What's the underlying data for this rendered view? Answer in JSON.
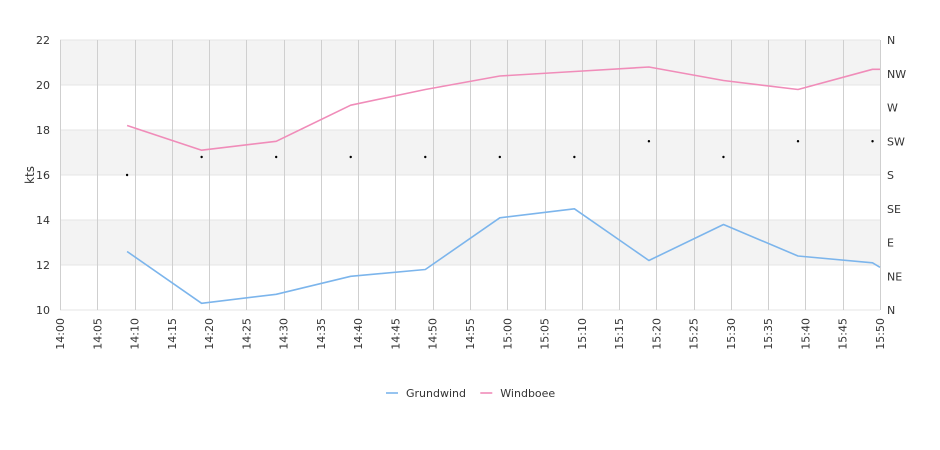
{
  "chart_data": {
    "type": "line",
    "ylabel": "kts",
    "ylim": [
      10,
      22
    ],
    "y_ticks": [
      "10",
      "12",
      "14",
      "16",
      "18",
      "20",
      "22"
    ],
    "x_ticks": [
      "14:00",
      "14:05",
      "14:10",
      "14:15",
      "14:20",
      "14:25",
      "14:30",
      "14:35",
      "14:40",
      "14:45",
      "14:50",
      "14:55",
      "15:00",
      "15:05",
      "15:10",
      "15:15",
      "15:20",
      "15:25",
      "15:30",
      "15:35",
      "15:40",
      "15:45",
      "15:50"
    ],
    "x_range": [
      "14:00",
      "15:50"
    ],
    "right_axis": {
      "label": "",
      "ticks": [
        "N",
        "NE",
        "E",
        "SE",
        "S",
        "SW",
        "W",
        "NW",
        "N"
      ]
    },
    "grid": true,
    "band_colors": [
      "#f3f3f3",
      "#ffffff"
    ],
    "legend_position": "bottom-center",
    "series": [
      {
        "name": "Grundwind",
        "color": "#7cb5ec",
        "points": [
          [
            "14:09",
            12.6
          ],
          [
            "14:19",
            10.3
          ],
          [
            "14:29",
            10.7
          ],
          [
            "14:39",
            11.5
          ],
          [
            "14:49",
            11.8
          ],
          [
            "14:59",
            14.1
          ],
          [
            "15:09",
            14.5
          ],
          [
            "15:19",
            12.2
          ],
          [
            "15:29",
            13.8
          ],
          [
            "15:39",
            12.4
          ],
          [
            "15:49",
            12.1
          ],
          [
            "15:50",
            11.9
          ]
        ]
      },
      {
        "name": "Windboee",
        "color": "#f08cb9",
        "points": [
          [
            "14:09",
            18.2
          ],
          [
            "14:19",
            17.1
          ],
          [
            "14:29",
            17.5
          ],
          [
            "14:39",
            19.1
          ],
          [
            "14:49",
            19.8
          ],
          [
            "14:59",
            20.4
          ],
          [
            "15:09",
            20.6
          ],
          [
            "15:19",
            20.8
          ],
          [
            "15:29",
            20.2
          ],
          [
            "15:39",
            19.8
          ],
          [
            "15:49",
            20.7
          ],
          [
            "15:50",
            20.7
          ]
        ]
      }
    ],
    "direction_points": [
      [
        "14:09",
        16.0
      ],
      [
        "14:19",
        16.8
      ],
      [
        "14:29",
        16.8
      ],
      [
        "14:39",
        16.8
      ],
      [
        "14:49",
        16.8
      ],
      [
        "14:59",
        16.8
      ],
      [
        "15:09",
        16.8
      ],
      [
        "15:19",
        17.5
      ],
      [
        "15:29",
        16.8
      ],
      [
        "15:39",
        17.5
      ],
      [
        "15:49",
        17.5
      ]
    ],
    "direction_color": "#000000"
  }
}
